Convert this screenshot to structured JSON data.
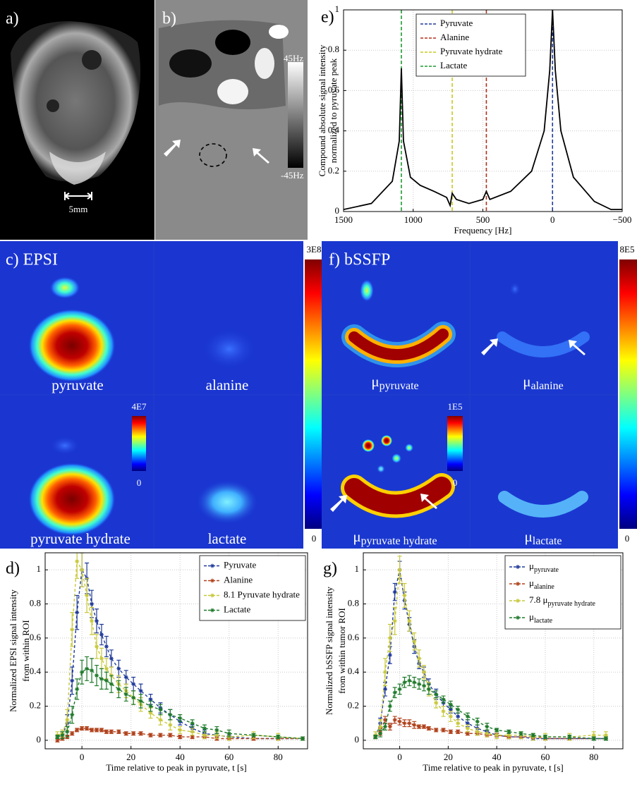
{
  "panels": {
    "a": "a)",
    "b": "b)",
    "c": "c) EPSI",
    "d": "d)",
    "e": "e)",
    "f": "f) bSSFP",
    "g": "g)"
  },
  "images": {
    "a": {
      "scale_bar": "5mm"
    },
    "b": {
      "colorbar_max": "45Hz",
      "colorbar_min": "-45Hz"
    },
    "c": {
      "labels": [
        "pyruvate",
        "alanine",
        "pyruvate hydrate",
        "lactate"
      ],
      "colorbar_max": "3E8",
      "colorbar_min": "0",
      "inset_max": "4E7",
      "inset_min": "0"
    },
    "f": {
      "labels": [
        {
          "symbol": "μ",
          "subscript": "pyruvate"
        },
        {
          "symbol": "μ",
          "subscript": "alanine"
        },
        {
          "symbol": "μ",
          "subscript": "pyruvate hydrate"
        },
        {
          "symbol": "μ",
          "subscript": "lactate"
        }
      ],
      "colorbar_max": "8E5",
      "colorbar_min": "0",
      "inset_max": "1E5",
      "inset_min": "0"
    }
  },
  "chart_data": [
    {
      "type": "line",
      "xlabel": "Frequency [Hz]",
      "ylabel": [
        "Compound absolute signal intensity",
        "normalized to pyruvate peak"
      ],
      "x": [
        1500,
        1300,
        1150,
        1100,
        1085,
        1070,
        1020,
        950,
        850,
        760,
        735,
        720,
        690,
        600,
        500,
        475,
        450,
        300,
        150,
        60,
        20,
        0,
        -20,
        -60,
        -150,
        -300,
        -420,
        -500
      ],
      "values": [
        0.01,
        0.04,
        0.15,
        0.35,
        0.71,
        0.35,
        0.17,
        0.13,
        0.1,
        0.07,
        0.03,
        0.09,
        0.06,
        0.04,
        0.06,
        0.1,
        0.06,
        0.1,
        0.2,
        0.4,
        0.7,
        1,
        0.7,
        0.4,
        0.17,
        0.05,
        0.01,
        0.01
      ],
      "color": "#000000",
      "reference_lines": [
        {
          "name": "Pyruvate",
          "color": "#1f3a9a",
          "x": 0
        },
        {
          "name": "Alanine",
          "color": "#b0301c",
          "x": 475
        },
        {
          "name": "Pyruvate hydrate",
          "color": "#c8c824",
          "x": 720
        },
        {
          "name": "Lactate",
          "color": "#1e9a30",
          "x": 1085
        }
      ],
      "xlim": [
        1500,
        -500
      ],
      "xticks": [
        1500,
        1000,
        500,
        0,
        {
          "value": -500,
          "label": "−500"
        }
      ],
      "ylim": [
        0,
        1
      ],
      "yticks": [
        0,
        0.2,
        0.4,
        0.6,
        0.8,
        1
      ],
      "grid": true
    },
    {
      "type": "line",
      "xlabel": "Time relative to peak in pyruvate, t [s]",
      "ylabel": [
        "Normalized EPSI signal intensity",
        "from within ROI"
      ],
      "x": [
        -10,
        -8,
        -6,
        -4,
        -2,
        0,
        2,
        4,
        6,
        8,
        10,
        12,
        15,
        18,
        21,
        24,
        28,
        32,
        36,
        40,
        45,
        50,
        55,
        60,
        70,
        80,
        90
      ],
      "series": [
        {
          "name": "Pyruvate",
          "color": "#1f3a9a",
          "values": [
            0.02,
            0.03,
            0.1,
            0.35,
            0.75,
            1.0,
            0.95,
            0.8,
            0.7,
            0.62,
            0.55,
            0.48,
            0.42,
            0.37,
            0.33,
            0.29,
            0.24,
            0.19,
            0.15,
            0.11,
            0.07,
            0.04,
            0.03,
            0.02,
            0.01,
            0.01,
            0.01
          ],
          "errors": [
            0.01,
            0.02,
            0.05,
            0.08,
            0.1,
            0.1,
            0.09,
            0.08,
            0.07,
            0.06,
            0.06,
            0.05,
            0.05,
            0.04,
            0.04,
            0.04,
            0.03,
            0.03,
            0.03,
            0.02,
            0.02,
            0.02,
            0.01,
            0.01,
            0.01,
            0.01,
            0.01
          ]
        },
        {
          "name": "Alanine",
          "color": "#b0401a",
          "values": [
            0,
            0.01,
            0.02,
            0.04,
            0.06,
            0.07,
            0.07,
            0.06,
            0.06,
            0.06,
            0.05,
            0.05,
            0.05,
            0.04,
            0.04,
            0.04,
            0.03,
            0.03,
            0.03,
            0.02,
            0.02,
            0.02,
            0.01,
            0.01,
            0.01,
            0.01,
            0.01
          ],
          "errors": [
            0.01,
            0.01,
            0.01,
            0.01,
            0.01,
            0.01,
            0.01,
            0.01,
            0.01,
            0.01,
            0.01,
            0.01,
            0.01,
            0.01,
            0.01,
            0.01,
            0.01,
            0.01,
            0.01,
            0.01,
            0.01,
            0.01,
            0.01,
            0.01,
            0.01,
            0.01,
            0.01
          ]
        },
        {
          "name": "8.1 Pyruvate hydrate",
          "color": "#c8c83a",
          "values": [
            0.03,
            0.04,
            0.12,
            0.65,
            1.05,
            1.0,
            0.85,
            0.7,
            0.55,
            0.48,
            0.42,
            0.38,
            0.33,
            0.29,
            0.25,
            0.21,
            0.16,
            0.12,
            0.09,
            0.06,
            0.05,
            0.03,
            0.03,
            0.02,
            0.03,
            0.02,
            0.01
          ],
          "errors": [
            0.02,
            0.02,
            0.06,
            0.1,
            0.1,
            0.1,
            0.1,
            0.08,
            0.07,
            0.06,
            0.06,
            0.05,
            0.05,
            0.04,
            0.04,
            0.04,
            0.03,
            0.03,
            0.03,
            0.02,
            0.02,
            0.02,
            0.02,
            0.02,
            0.02,
            0.02,
            0.01
          ]
        },
        {
          "name": "Lactate",
          "color": "#1e7a2a",
          "values": [
            0.02,
            0.03,
            0.05,
            0.15,
            0.3,
            0.4,
            0.42,
            0.41,
            0.38,
            0.36,
            0.35,
            0.33,
            0.3,
            0.27,
            0.25,
            0.23,
            0.2,
            0.18,
            0.15,
            0.13,
            0.1,
            0.07,
            0.06,
            0.04,
            0.03,
            0.02,
            0.01
          ],
          "errors": [
            0.01,
            0.02,
            0.03,
            0.05,
            0.06,
            0.07,
            0.07,
            0.07,
            0.06,
            0.06,
            0.05,
            0.05,
            0.05,
            0.04,
            0.04,
            0.04,
            0.03,
            0.03,
            0.03,
            0.02,
            0.02,
            0.02,
            0.02,
            0.02,
            0.01,
            0.01,
            0.01
          ]
        }
      ],
      "xlim": [
        -15,
        92
      ],
      "xticks": [
        0,
        20,
        40,
        60,
        80
      ],
      "ylim": [
        -0.05,
        1.1
      ],
      "yticks": [
        0,
        0.2,
        0.4,
        0.6,
        0.8,
        1
      ],
      "grid": true
    },
    {
      "type": "line",
      "xlabel": "Time relative to peak in pyruvate, t [s]",
      "ylabel": [
        "Normalized bSSFP signal intensity",
        "from within tumor ROI"
      ],
      "x": [
        -10,
        -8,
        -6,
        -4,
        -2,
        0,
        2,
        4,
        6,
        8,
        10,
        12,
        15,
        18,
        21,
        24,
        28,
        32,
        36,
        40,
        45,
        50,
        55,
        60,
        70,
        80,
        85
      ],
      "series": [
        {
          "name": "μ",
          "subscript": "pyruvate",
          "color": "#1f3a9a",
          "values": [
            0.02,
            0.1,
            0.3,
            0.5,
            0.87,
            1.0,
            0.82,
            0.68,
            0.55,
            0.45,
            0.4,
            0.33,
            0.27,
            0.22,
            0.18,
            0.14,
            0.1,
            0.07,
            0.05,
            0.03,
            0.02,
            0.02,
            0.01,
            0.01,
            0.01,
            0.01,
            0.01
          ],
          "errors": [
            0.01,
            0.03,
            0.04,
            0.05,
            0.05,
            0.05,
            0.05,
            0.04,
            0.04,
            0.03,
            0.03,
            0.03,
            0.03,
            0.02,
            0.02,
            0.02,
            0.02,
            0.02,
            0.01,
            0.01,
            0.01,
            0.01,
            0.01,
            0.01,
            0.01,
            0.01,
            0.01
          ]
        },
        {
          "name": "μ",
          "subscript": "alanine",
          "color": "#b0401a",
          "values": [
            0.02,
            0.05,
            0.12,
            0.08,
            0.12,
            0.11,
            0.1,
            0.1,
            0.09,
            0.08,
            0.08,
            0.07,
            0.06,
            0.06,
            0.05,
            0.05,
            0.04,
            0.04,
            0.03,
            0.03,
            0.02,
            0.02,
            0.02,
            0.01,
            0.01,
            0.01,
            0.01
          ],
          "errors": [
            0.01,
            0.02,
            0.02,
            0.02,
            0.02,
            0.02,
            0.02,
            0.02,
            0.02,
            0.01,
            0.01,
            0.01,
            0.01,
            0.01,
            0.01,
            0.01,
            0.01,
            0.01,
            0.01,
            0.01,
            0.01,
            0.01,
            0.01,
            0.01,
            0.01,
            0.01,
            0.01
          ]
        },
        {
          "name": "7.8 μ",
          "subscript": "pyruvate hydrate",
          "color": "#c8c83a",
          "values": [
            0.03,
            0.08,
            0.4,
            0.6,
            0.7,
            1.0,
            0.85,
            0.7,
            0.58,
            0.48,
            0.4,
            0.3,
            0.22,
            0.17,
            0.14,
            0.1,
            0.07,
            0.05,
            0.04,
            0.03,
            0.03,
            0.03,
            0.02,
            0.02,
            0.02,
            0.03,
            0.03
          ],
          "errors": [
            0.02,
            0.04,
            0.08,
            0.08,
            0.08,
            0.08,
            0.07,
            0.06,
            0.05,
            0.05,
            0.04,
            0.04,
            0.03,
            0.03,
            0.03,
            0.02,
            0.02,
            0.02,
            0.02,
            0.02,
            0.02,
            0.02,
            0.02,
            0.02,
            0.02,
            0.02,
            0.02
          ]
        },
        {
          "name": "μ",
          "subscript": "lactate",
          "color": "#1e7a2a",
          "values": [
            0.02,
            0.04,
            0.08,
            0.2,
            0.28,
            0.3,
            0.34,
            0.35,
            0.34,
            0.33,
            0.32,
            0.3,
            0.27,
            0.24,
            0.21,
            0.18,
            0.14,
            0.11,
            0.08,
            0.06,
            0.05,
            0.04,
            0.03,
            0.02,
            0.02,
            0.01,
            0.01
          ],
          "errors": [
            0.01,
            0.02,
            0.02,
            0.03,
            0.03,
            0.03,
            0.03,
            0.03,
            0.03,
            0.03,
            0.03,
            0.03,
            0.02,
            0.02,
            0.02,
            0.02,
            0.02,
            0.02,
            0.02,
            0.01,
            0.01,
            0.01,
            0.01,
            0.01,
            0.01,
            0.01,
            0.01
          ]
        }
      ],
      "xlim": [
        -15,
        92
      ],
      "xticks": [
        0,
        20,
        40,
        60,
        80
      ],
      "ylim": [
        -0.05,
        1.1
      ],
      "yticks": [
        0,
        0.2,
        0.4,
        0.6,
        0.8,
        1
      ],
      "grid": true
    }
  ]
}
